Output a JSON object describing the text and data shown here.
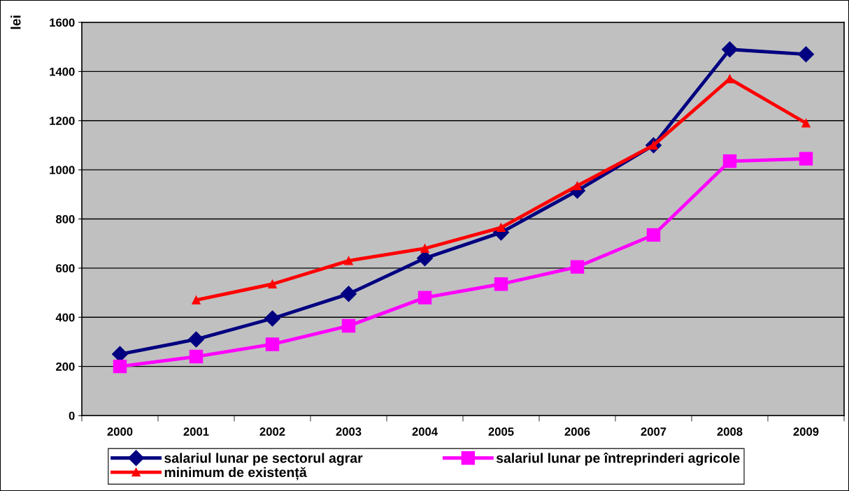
{
  "chart_data": {
    "type": "line",
    "ylabel": "lei",
    "categories": [
      "2000",
      "2001",
      "2002",
      "2003",
      "2004",
      "2005",
      "2006",
      "2007",
      "2008",
      "2009"
    ],
    "series": [
      {
        "name": "salariul lunar pe sectorul agrar",
        "color": "#000080",
        "marker": "diamond",
        "values": [
          250,
          310,
          395,
          495,
          640,
          745,
          915,
          1100,
          1490,
          1470
        ]
      },
      {
        "name": "salariul lunar pe întreprinderi agricole",
        "color": "#ff00ff",
        "marker": "square",
        "values": [
          200,
          240,
          290,
          365,
          480,
          535,
          605,
          735,
          1035,
          1045
        ]
      },
      {
        "name": "minimum de existență",
        "color": "#ff0000",
        "marker": "triangle",
        "values": [
          null,
          470,
          535,
          630,
          680,
          765,
          935,
          1100,
          1370,
          1190
        ]
      }
    ],
    "ylim": [
      0,
      1600
    ],
    "yticks": [
      0,
      200,
      400,
      600,
      800,
      1000,
      1200,
      1400,
      1600
    ],
    "grid": "y",
    "legend": "bottom",
    "line_style": "solid"
  }
}
